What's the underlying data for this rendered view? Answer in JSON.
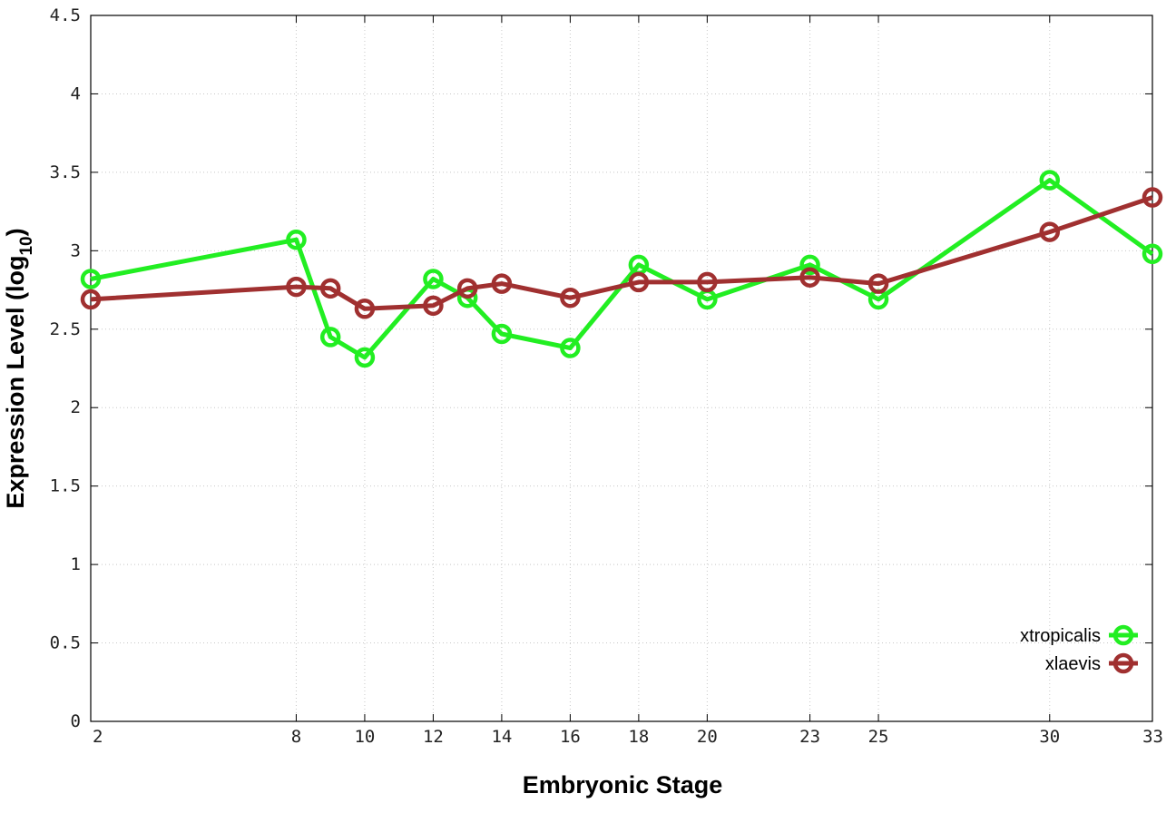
{
  "chart_data": {
    "type": "line",
    "xlabel": "Embryonic Stage",
    "ylabel_main": "Expression Level (log",
    "ylabel_sub": "10",
    "ylabel_close": ")",
    "ylim": [
      0,
      4.5
    ],
    "yticks": [
      {
        "value": 0,
        "label": "0"
      },
      {
        "value": 0.5,
        "label": "0.5"
      },
      {
        "value": 1,
        "label": "1"
      },
      {
        "value": 1.5,
        "label": "1.5"
      },
      {
        "value": 2,
        "label": "2"
      },
      {
        "value": 2.5,
        "label": "2.5"
      },
      {
        "value": 3,
        "label": "3"
      },
      {
        "value": 3.5,
        "label": "3.5"
      },
      {
        "value": 4,
        "label": "4"
      },
      {
        "value": 4.5,
        "label": "4.5"
      }
    ],
    "xlim": [
      2,
      33
    ],
    "xticks": [
      {
        "value": 2,
        "label": "2"
      },
      {
        "value": 8,
        "label": "8"
      },
      {
        "value": 10,
        "label": "10"
      },
      {
        "value": 12,
        "label": "12"
      },
      {
        "value": 14,
        "label": "14"
      },
      {
        "value": 16,
        "label": "16"
      },
      {
        "value": 18,
        "label": "18"
      },
      {
        "value": 20,
        "label": "20"
      },
      {
        "value": 23,
        "label": "23"
      },
      {
        "value": 25,
        "label": "25"
      },
      {
        "value": 30,
        "label": "30"
      },
      {
        "value": 33,
        "label": "33"
      }
    ],
    "grid": true,
    "legend_position": "bottom-right",
    "series": [
      {
        "name": "xtropicalis",
        "color": "#22ee22",
        "points": [
          {
            "x": 2,
            "y": 2.82
          },
          {
            "x": 8,
            "y": 3.07
          },
          {
            "x": 9,
            "y": 2.45
          },
          {
            "x": 10,
            "y": 2.32
          },
          {
            "x": 12,
            "y": 2.82
          },
          {
            "x": 13,
            "y": 2.7
          },
          {
            "x": 14,
            "y": 2.47
          },
          {
            "x": 16,
            "y": 2.38
          },
          {
            "x": 18,
            "y": 2.91
          },
          {
            "x": 20,
            "y": 2.69
          },
          {
            "x": 23,
            "y": 2.91
          },
          {
            "x": 25,
            "y": 2.69
          },
          {
            "x": 30,
            "y": 3.45
          },
          {
            "x": 33,
            "y": 2.98
          }
        ]
      },
      {
        "name": "xlaevis",
        "color": "#a03030",
        "points": [
          {
            "x": 2,
            "y": 2.69
          },
          {
            "x": 8,
            "y": 2.77
          },
          {
            "x": 9,
            "y": 2.76
          },
          {
            "x": 10,
            "y": 2.63
          },
          {
            "x": 12,
            "y": 2.65
          },
          {
            "x": 13,
            "y": 2.76
          },
          {
            "x": 14,
            "y": 2.79
          },
          {
            "x": 16,
            "y": 2.7
          },
          {
            "x": 18,
            "y": 2.8
          },
          {
            "x": 20,
            "y": 2.8
          },
          {
            "x": 23,
            "y": 2.83
          },
          {
            "x": 25,
            "y": 2.79
          },
          {
            "x": 30,
            "y": 3.12
          },
          {
            "x": 33,
            "y": 3.34
          }
        ]
      }
    ]
  }
}
